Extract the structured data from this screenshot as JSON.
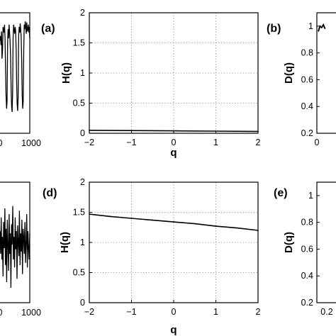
{
  "chart_data": [
    {
      "id": "series-top",
      "type": "line",
      "xticks": [
        "1000"
      ],
      "xlim": [
        0,
        1000
      ],
      "description_values": "oscillating signal with sharp dips",
      "y": [
        0.78,
        0.82,
        0.74,
        0.86,
        0.62,
        0.7,
        0.9,
        0.88,
        0.85,
        0.92,
        0.8,
        0.55,
        0.3,
        0.18,
        0.25,
        0.75,
        0.88,
        0.8,
        0.92,
        0.85,
        0.78,
        0.65,
        0.35,
        0.2,
        0.15,
        0.32,
        0.8,
        0.92,
        0.88,
        0.84,
        0.9,
        0.86,
        0.7,
        0.4,
        0.22,
        0.16,
        0.28,
        0.82,
        0.9,
        0.85,
        0.93,
        0.88,
        0.8,
        0.6,
        0.3,
        0.18,
        0.24,
        0.7,
        0.92,
        0.88,
        0.95,
        0.9,
        0.84,
        0.94,
        0.86,
        0.88,
        0.92,
        0.85,
        0.9,
        0.8
      ]
    },
    {
      "id": "panel-a",
      "type": "line",
      "panel_label": "(a)",
      "xlabel": "q",
      "ylabel": "H(q)",
      "xlim": [
        -2,
        2
      ],
      "ylim": [
        0,
        2
      ],
      "xticks": [
        "−2",
        "−1",
        "0",
        "1",
        "2"
      ],
      "yticks": [
        "0",
        "0.5",
        "1",
        "1.5",
        "2"
      ],
      "grid": true,
      "x": [
        -2,
        -1,
        0,
        1,
        2
      ],
      "y": [
        0.05,
        0.045,
        0.04,
        0.035,
        0.03
      ]
    },
    {
      "id": "panel-b",
      "type": "line",
      "panel_label": "(b)",
      "ylabel": "D(q)",
      "ylim": [
        0.2,
        1.1
      ],
      "yticks": [
        "0.2",
        "0.4",
        "0.6",
        "0.8",
        "1"
      ],
      "xticks": [
        "0"
      ],
      "x": [
        0.0,
        0.02,
        0.04,
        0.06,
        0.08
      ],
      "y": [
        0.96,
        1.0,
        0.99,
        1.01,
        0.98
      ]
    },
    {
      "id": "series-bottom",
      "type": "line",
      "xticks": [
        "1000"
      ],
      "xlim": [
        0,
        1000
      ],
      "y": [
        0.6,
        0.4,
        0.72,
        0.35,
        0.55,
        0.2,
        0.68,
        0.45,
        0.8,
        0.3,
        0.62,
        0.15,
        0.7,
        0.5,
        0.25,
        0.75,
        0.4,
        0.58,
        0.1,
        0.66,
        0.48,
        0.82,
        0.35,
        0.55,
        0.28,
        0.72,
        0.44,
        0.6,
        0.18,
        0.65,
        0.5,
        0.38,
        0.78,
        0.3,
        0.58,
        0.42,
        0.7,
        0.22,
        0.62,
        0.55,
        0.4,
        0.68,
        0.32,
        0.5,
        0.75,
        0.28,
        0.6,
        0.45,
        0.35,
        0.58
      ]
    },
    {
      "id": "panel-d",
      "type": "line",
      "panel_label": "(d)",
      "xlabel": "q",
      "ylabel": "H(q)",
      "xlim": [
        -2,
        2
      ],
      "ylim": [
        0,
        2
      ],
      "xticks": [
        "−2",
        "−1",
        "0",
        "1",
        "2"
      ],
      "yticks": [
        "0",
        "0.5",
        "1",
        "1.5",
        "2"
      ],
      "grid": true,
      "x": [
        -2,
        -1.5,
        -1,
        -0.5,
        0,
        0.5,
        1,
        1.5,
        2
      ],
      "y": [
        1.47,
        1.43,
        1.4,
        1.37,
        1.34,
        1.31,
        1.27,
        1.24,
        1.2
      ]
    },
    {
      "id": "panel-e",
      "type": "line",
      "panel_label": "(e)",
      "ylabel": "D(q)",
      "ylim": [
        0.2,
        1.1
      ],
      "yticks": [
        "0.2",
        "0.4",
        "0.6",
        "0.8",
        "1"
      ],
      "xticks": [
        "0.2"
      ]
    }
  ]
}
